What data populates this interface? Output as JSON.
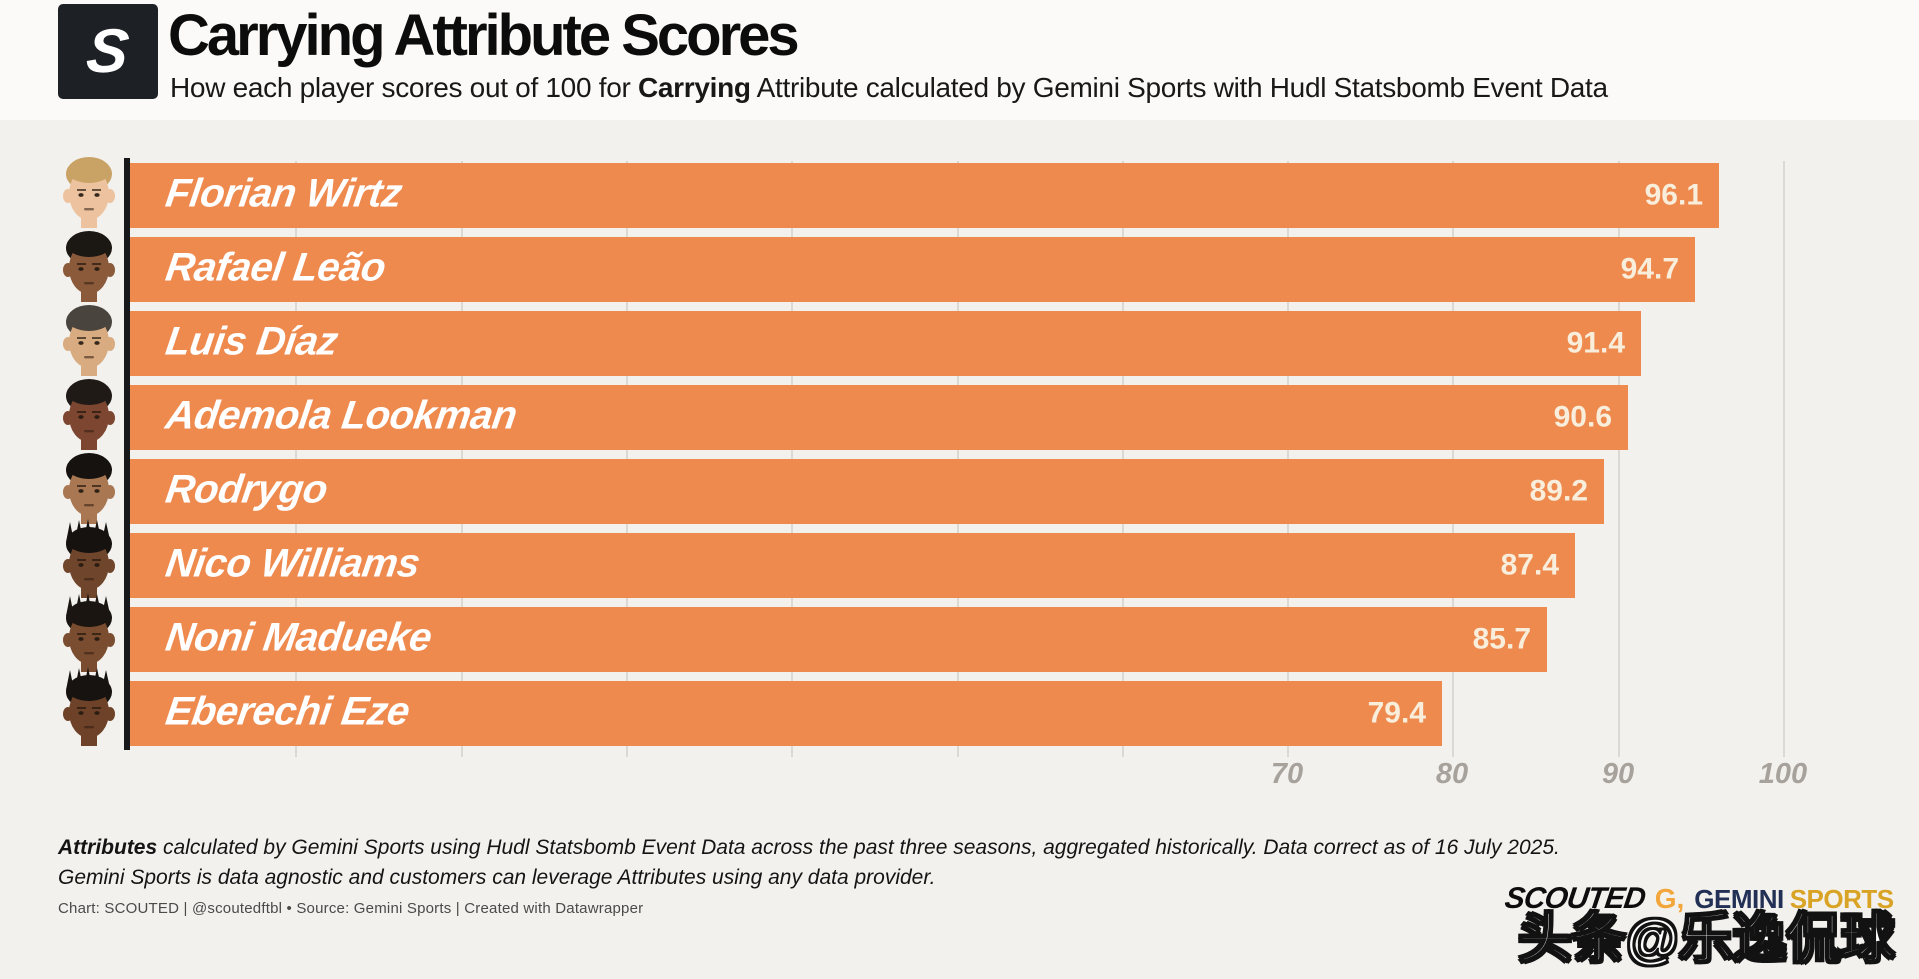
{
  "header": {
    "logo_letter": "S",
    "title": "Carrying Attribute Scores",
    "subtitle_prefix": "How each player scores out of 100 for ",
    "subtitle_bold": "Carrying",
    "subtitle_suffix": " Attribute calculated by Gemini Sports with Hudl Statsbomb Event Data"
  },
  "chart_data": {
    "type": "bar",
    "orientation": "horizontal",
    "title": "Carrying Attribute Scores",
    "categories": [
      "Florian Wirtz",
      "Rafael Leão",
      "Luis Díaz",
      "Ademola Lookman",
      "Rodrygo",
      "Nico Williams",
      "Noni Madueke",
      "Eberechi Eze"
    ],
    "values": [
      96.1,
      94.7,
      91.4,
      90.6,
      89.2,
      87.4,
      85.7,
      79.4
    ],
    "xlim": [
      0,
      100
    ],
    "x_tick_labels": [
      70,
      80,
      90,
      100
    ],
    "gridline_values": [
      10,
      20,
      30,
      40,
      50,
      60,
      70,
      80,
      90,
      100
    ],
    "grid": true,
    "legend": "none",
    "bar_color": "#EF8A4F",
    "value_label_color": "#F8EEDB",
    "name_label_color": "#FFFFFF"
  },
  "players": [
    {
      "name": "Florian Wirtz",
      "value": 96.1,
      "skin": "#ecc39e",
      "hair": "#c9a265",
      "style": "short"
    },
    {
      "name": "Rafael Leão",
      "value": 94.7,
      "skin": "#8a5a3b",
      "hair": "#1b1713",
      "style": "short"
    },
    {
      "name": "Luis Díaz",
      "value": 91.4,
      "skin": "#d8ab80",
      "hair": "#4a443f",
      "style": "curly"
    },
    {
      "name": "Ademola Lookman",
      "value": 90.6,
      "skin": "#7c4630",
      "hair": "#201a16",
      "style": "curly"
    },
    {
      "name": "Rodrygo",
      "value": 89.2,
      "skin": "#a97752",
      "hair": "#16120f",
      "style": "short"
    },
    {
      "name": "Nico Williams",
      "value": 87.4,
      "skin": "#6f452b",
      "hair": "#16120f",
      "style": "locs"
    },
    {
      "name": "Noni Madueke",
      "value": 85.7,
      "skin": "#7a4c30",
      "hair": "#1a1510",
      "style": "locs"
    },
    {
      "name": "Eberechi Eze",
      "value": 79.4,
      "skin": "#6e4229",
      "hair": "#171310",
      "style": "locs"
    }
  ],
  "axis": {
    "ticks": [
      "70",
      "80",
      "90",
      "100"
    ]
  },
  "footer": {
    "note_bold": "Attributes",
    "note_rest": " calculated by Gemini Sports using Hudl Statsbomb Event Data across the past three seasons, aggregated historically. Data correct as of 16 July 2025.",
    "note_line2": "Gemini Sports is data agnostic and customers can leverage Attributes using any data provider.",
    "credit": "Chart: SCOUTED | @scoutedftbl • Source: Gemini Sports | Created with Datawrapper"
  },
  "branding": {
    "scouted": "SCOUTED",
    "gemini_g": "G,",
    "gemini": "GEMINI",
    "sports": "SPORTS"
  },
  "watermark": {
    "text": "头条@乐逸侃球"
  }
}
